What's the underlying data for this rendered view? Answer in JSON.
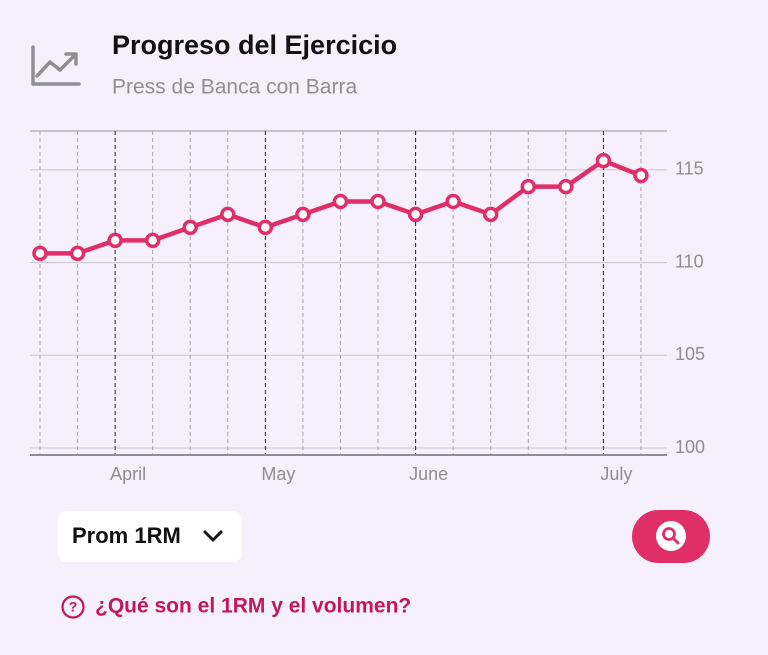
{
  "header": {
    "title": "Progreso del Ejercicio",
    "subtitle": "Press de Banca con Barra"
  },
  "chart_data": {
    "type": "line",
    "categories": [
      null,
      null,
      "April",
      null,
      null,
      null,
      "May",
      null,
      null,
      null,
      "June",
      null,
      null,
      null,
      null,
      "July",
      null
    ],
    "values": [
      110.5,
      110.5,
      111.2,
      111.2,
      111.9,
      112.6,
      111.9,
      112.6,
      113.3,
      113.3,
      112.6,
      113.3,
      112.6,
      114.1,
      114.1,
      115.5,
      114.7
    ],
    "color": "#e02e68",
    "ylim": [
      100,
      117.1
    ],
    "yticks": [
      100,
      105,
      110,
      115
    ],
    "grid": true
  },
  "controls": {
    "metric_button": "Prom 1RM"
  },
  "help_link": "¿Qué son el 1RM y el volumen?"
}
